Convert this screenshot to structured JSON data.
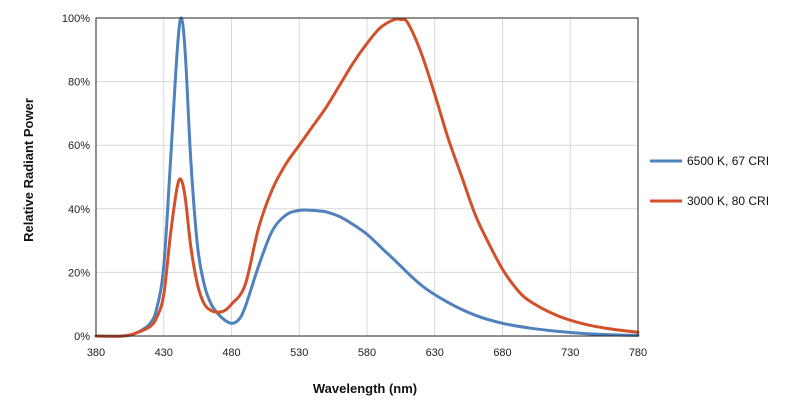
{
  "chart_data": {
    "type": "line",
    "title": "",
    "xlabel": "Wavelength (nm)",
    "ylabel": "Relative Radiant Power",
    "xlim": [
      380,
      780
    ],
    "ylim": [
      0,
      100
    ],
    "x_ticks": [
      380,
      430,
      480,
      530,
      580,
      630,
      680,
      730,
      780
    ],
    "x_tick_labels": [
      "380",
      "430",
      "480",
      "530",
      "580",
      "630",
      "680",
      "730",
      "780"
    ],
    "y_ticks": [
      0,
      20,
      40,
      60,
      80,
      100
    ],
    "y_tick_labels": [
      "0%",
      "20%",
      "40%",
      "60%",
      "80%",
      "100%"
    ],
    "grid": true,
    "legend_position": "right",
    "series": [
      {
        "name": "6500 K, 67 CRI",
        "color": "#4f81bd",
        "x": [
          380,
          400,
          410,
          420,
          425,
          430,
          435,
          440,
          443,
          446,
          450,
          455,
          460,
          465,
          470,
          475,
          480,
          485,
          490,
          500,
          510,
          520,
          530,
          540,
          545,
          550,
          560,
          570,
          580,
          590,
          600,
          620,
          640,
          660,
          680,
          700,
          720,
          740,
          760,
          780
        ],
        "y": [
          0,
          0,
          1,
          4,
          9,
          22,
          55,
          90,
          100,
          88,
          55,
          28,
          16,
          10,
          7,
          5,
          4,
          5,
          9,
          22,
          33,
          38,
          39.5,
          39.5,
          39.3,
          39,
          37.5,
          35,
          32,
          28,
          24,
          16,
          10.5,
          6.5,
          4,
          2.5,
          1.5,
          0.8,
          0.4,
          0.2
        ]
      },
      {
        "name": "3000 K, 80 CRI",
        "color": "#d2502a",
        "x": [
          380,
          400,
          410,
          420,
          425,
          430,
          435,
          440,
          443,
          446,
          450,
          455,
          460,
          465,
          470,
          475,
          480,
          490,
          500,
          510,
          520,
          530,
          540,
          550,
          560,
          570,
          580,
          590,
          600,
          605,
          610,
          620,
          630,
          640,
          650,
          660,
          670,
          680,
          690,
          700,
          720,
          740,
          760,
          780
        ],
        "y": [
          0,
          0,
          1,
          3,
          6,
          13,
          32,
          47,
          49,
          43,
          28,
          16,
          10,
          8,
          7.5,
          8,
          10,
          16,
          34,
          46,
          54,
          60,
          66,
          72,
          79,
          86,
          92,
          97,
          99.5,
          99.5,
          98.5,
          89,
          76,
          62,
          50,
          38,
          29,
          21,
          15,
          11,
          6.5,
          3.8,
          2.2,
          1.2
        ]
      }
    ]
  }
}
